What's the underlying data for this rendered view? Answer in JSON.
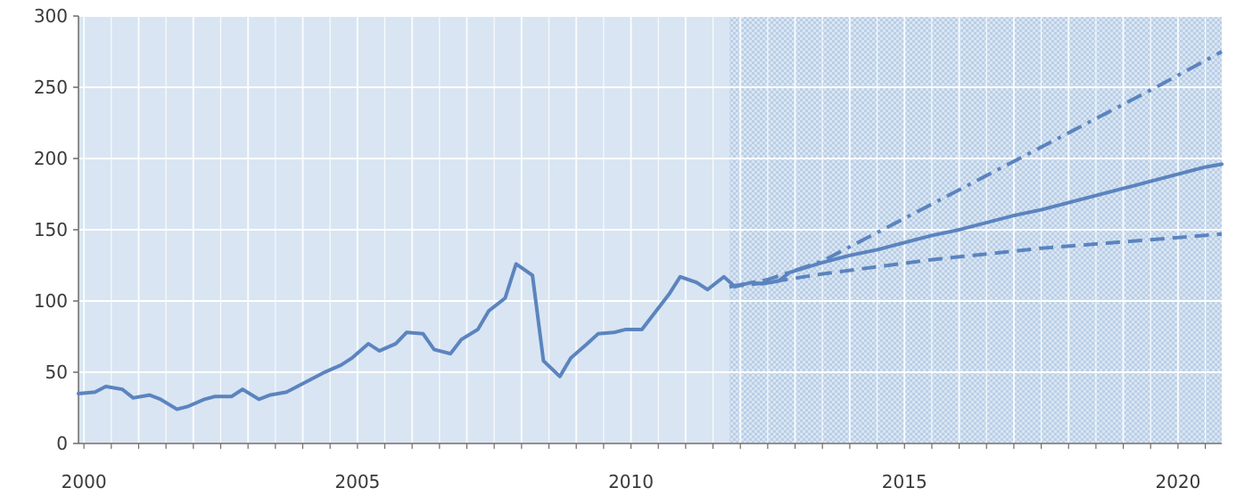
{
  "chart_data": {
    "type": "line",
    "title": "",
    "xlabel": "",
    "ylabel": "",
    "xlim": [
      1999.9,
      2020.8
    ],
    "ylim": [
      0,
      300
    ],
    "yticks": [
      0,
      50,
      100,
      150,
      200,
      250,
      300
    ],
    "xticks": [
      2000,
      2005,
      2010,
      2015,
      2020
    ],
    "grid": true,
    "legend": "none",
    "forecast_region_start": 2011.8,
    "colors": {
      "plot_background": "#d9e5f2",
      "forecast_shading": "#b7cde6",
      "grid": "#ffffff",
      "line": "#5b84bf"
    },
    "series": [
      {
        "style": "solid",
        "x": [
          1999.9,
          2000.2,
          2000.4,
          2000.7,
          2000.9,
          2001.2,
          2001.4,
          2001.7,
          2001.9,
          2002.2,
          2002.4,
          2002.7,
          2002.9,
          2003.2,
          2003.4,
          2003.7,
          2003.9,
          2004.2,
          2004.4,
          2004.7,
          2004.9,
          2005.2,
          2005.4,
          2005.7,
          2005.9,
          2006.2,
          2006.4,
          2006.7,
          2006.9,
          2007.2,
          2007.4,
          2007.7,
          2007.9,
          2008.2,
          2008.4,
          2008.7,
          2008.9,
          2009.2,
          2009.4,
          2009.7,
          2009.9,
          2010.2,
          2010.4,
          2010.7,
          2010.9,
          2011.2,
          2011.4,
          2011.7,
          2011.9,
          2012.2,
          2012.4,
          2012.7,
          2012.9,
          2013.5,
          2014,
          2014.5,
          2015,
          2015.5,
          2016,
          2016.5,
          2017,
          2017.5,
          2018,
          2018.5,
          2019,
          2019.5,
          2020,
          2020.5,
          2020.8
        ],
        "y": [
          35,
          36,
          40,
          38,
          32,
          34,
          31,
          24,
          26,
          31,
          33,
          33,
          38,
          31,
          34,
          36,
          40,
          46,
          50,
          55,
          60,
          70,
          65,
          70,
          78,
          77,
          66,
          63,
          73,
          80,
          93,
          102,
          126,
          118,
          58,
          47,
          60,
          70,
          77,
          78,
          80,
          80,
          90,
          105,
          117,
          113,
          108,
          117,
          110,
          113,
          112,
          114,
          120,
          127,
          132,
          136,
          141,
          146,
          150,
          155,
          160,
          164,
          169,
          174,
          179,
          184,
          189,
          194,
          196
        ]
      },
      {
        "style": "dash-dot",
        "x": [
          2011.8,
          2012.5,
          2013.5,
          2014.5,
          2015.5,
          2016.5,
          2017.5,
          2018.5,
          2019.5,
          2020.8
        ],
        "y": [
          110,
          115,
          128,
          148,
          168,
          188,
          208,
          228,
          248,
          275
        ]
      },
      {
        "style": "dashed",
        "x": [
          2011.8,
          2012.5,
          2013.5,
          2014.5,
          2015.5,
          2016.5,
          2017.5,
          2018.5,
          2019.5,
          2020.8
        ],
        "y": [
          110,
          113,
          119,
          124,
          129,
          133,
          137,
          140,
          143,
          147
        ]
      }
    ]
  }
}
